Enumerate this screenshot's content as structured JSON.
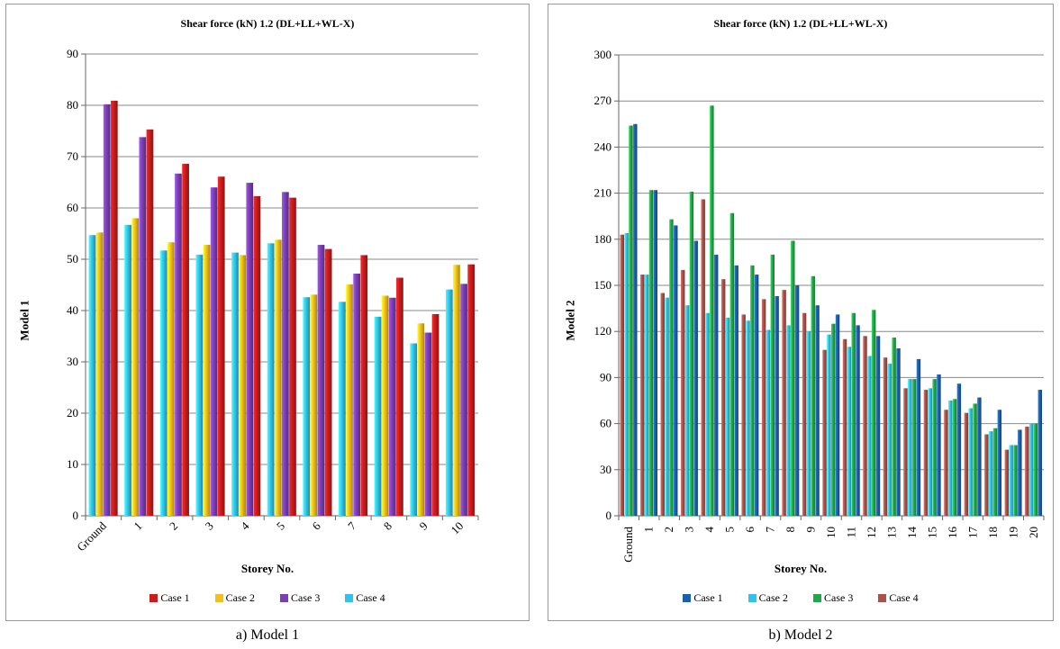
{
  "chart_data": [
    {
      "type": "bar",
      "title": "Shear force (kN) 1.2 (DL+LL+WL-X)",
      "xlabel": "Storey No.",
      "ylabel": "Model 1",
      "ylim": [
        0,
        90
      ],
      "ytick_step": 10,
      "grid": true,
      "legend_position": "bottom",
      "categories": [
        "Ground",
        "1",
        "2",
        "3",
        "4",
        "5",
        "6",
        "7",
        "8",
        "9",
        "10"
      ],
      "series": [
        {
          "name": "Case 4",
          "color": "#33c3ea",
          "values": [
            54.7,
            56.7,
            51.7,
            50.9,
            51.3,
            53.1,
            42.6,
            41.7,
            38.8,
            33.6,
            44.1
          ]
        },
        {
          "name": "Case 2",
          "color": "#f2c01c",
          "values": [
            55.2,
            58.0,
            53.3,
            52.8,
            50.8,
            53.8,
            43.1,
            45.1,
            42.9,
            37.5,
            48.9
          ]
        },
        {
          "name": "Case 3",
          "color": "#7a3fb4",
          "values": [
            80.2,
            73.8,
            66.7,
            64.0,
            64.9,
            63.1,
            52.8,
            47.2,
            42.5,
            35.7,
            45.2
          ]
        },
        {
          "name": "Case 1",
          "color": "#c81d1d",
          "values": [
            80.9,
            75.3,
            68.6,
            66.1,
            62.3,
            62.0,
            52.0,
            50.8,
            46.4,
            39.3,
            49.0
          ]
        }
      ],
      "legend_order": [
        "Case 1",
        "Case 2",
        "Case 3",
        "Case 4"
      ],
      "caption": "a) Model 1"
    },
    {
      "type": "bar",
      "title": "Shear force (kN) 1.2 (DL+LL+WL-X)",
      "xlabel": "Storey No.",
      "ylabel": "Model 2",
      "ylim": [
        0,
        300
      ],
      "ytick_step": 30,
      "grid": true,
      "legend_position": "bottom",
      "categories": [
        "Ground",
        "1",
        "2",
        "3",
        "4",
        "5",
        "6",
        "7",
        "8",
        "9",
        "10",
        "11",
        "12",
        "13",
        "14",
        "15",
        "16",
        "17",
        "18",
        "19",
        "20"
      ],
      "series": [
        {
          "name": "Case 4",
          "color": "#a8524a",
          "values": [
            183,
            157,
            145,
            160,
            206,
            154,
            131,
            141,
            147,
            132,
            108,
            115,
            117,
            103,
            83,
            82,
            69,
            67,
            53,
            43,
            58
          ]
        },
        {
          "name": "Case 2",
          "color": "#33c3ea",
          "values": [
            184,
            157,
            142,
            137,
            132,
            129,
            127,
            121,
            124,
            120,
            118,
            110,
            104,
            99,
            89,
            83,
            75,
            70,
            55,
            46,
            60
          ]
        },
        {
          "name": "Case 3",
          "color": "#22a748",
          "values": [
            254,
            212,
            193,
            211,
            267,
            197,
            163,
            170,
            179,
            156,
            125,
            132,
            134,
            116,
            89,
            89,
            76,
            73,
            57,
            46,
            60
          ]
        },
        {
          "name": "Case 1",
          "color": "#1c5fa8",
          "values": [
            255,
            212,
            189,
            179,
            170,
            163,
            157,
            143,
            150,
            137,
            131,
            124,
            117,
            109,
            102,
            92,
            86,
            77,
            69,
            56,
            82
          ]
        }
      ],
      "legend_order": [
        "Case 1",
        "Case 2",
        "Case 3",
        "Case 4"
      ],
      "caption": "b) Model 2"
    }
  ]
}
